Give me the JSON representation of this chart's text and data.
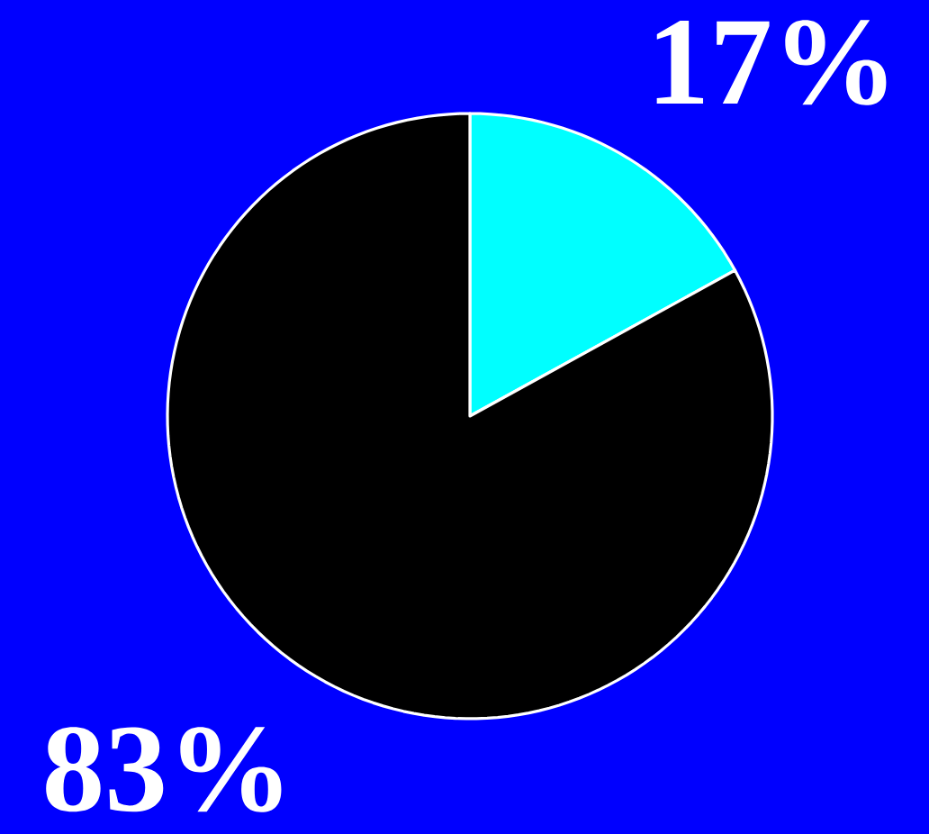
{
  "chart_data": {
    "type": "pie",
    "categories": [
      null,
      null
    ],
    "values": [
      17,
      83
    ],
    "colors": [
      "#00ffff",
      "#000000"
    ],
    "value_labels": [
      "17%",
      "83%"
    ]
  }
}
